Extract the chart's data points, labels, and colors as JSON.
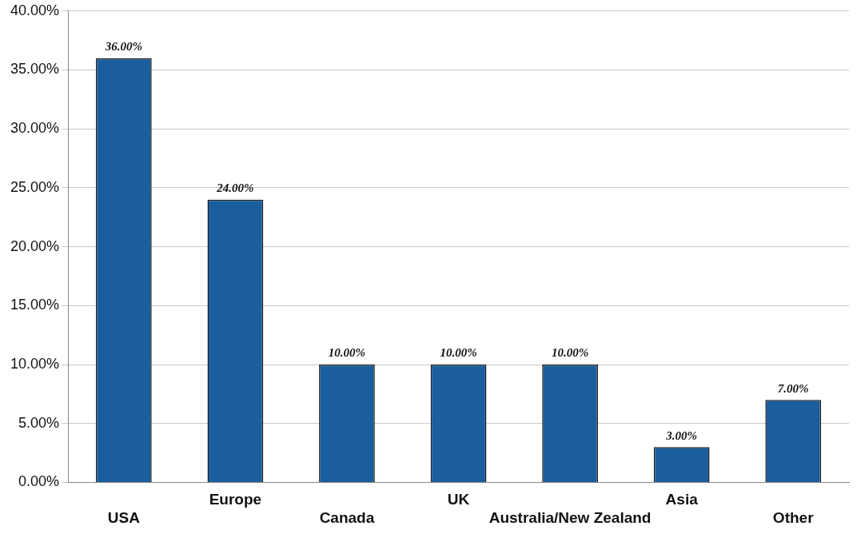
{
  "chart_data": {
    "type": "bar",
    "categories": [
      "USA",
      "Europe",
      "Canada",
      "UK",
      "Australia/New Zealand",
      "Asia",
      "Other"
    ],
    "values": [
      36,
      24,
      10,
      10,
      10,
      3,
      7
    ],
    "color": "#1b5e9e",
    "value_labels": [
      "36.00%",
      "24.00%",
      "10.00%",
      "10.00%",
      "10.00%",
      "3.00%",
      "7.00%"
    ],
    "ylim": [
      0,
      40
    ],
    "yticks": [
      {
        "value": 0,
        "label": "0.00%"
      },
      {
        "value": 5,
        "label": "5.00%"
      },
      {
        "value": 10,
        "label": "10.00%"
      },
      {
        "value": 15,
        "label": "15.00%"
      },
      {
        "value": 20,
        "label": "20.00%"
      },
      {
        "value": 25,
        "label": "25.00%"
      },
      {
        "value": 30,
        "label": "30.00%"
      },
      {
        "value": 35,
        "label": "35.00%"
      },
      {
        "value": 40,
        "label": "40.00%"
      }
    ],
    "grid": "y",
    "legend": false
  }
}
